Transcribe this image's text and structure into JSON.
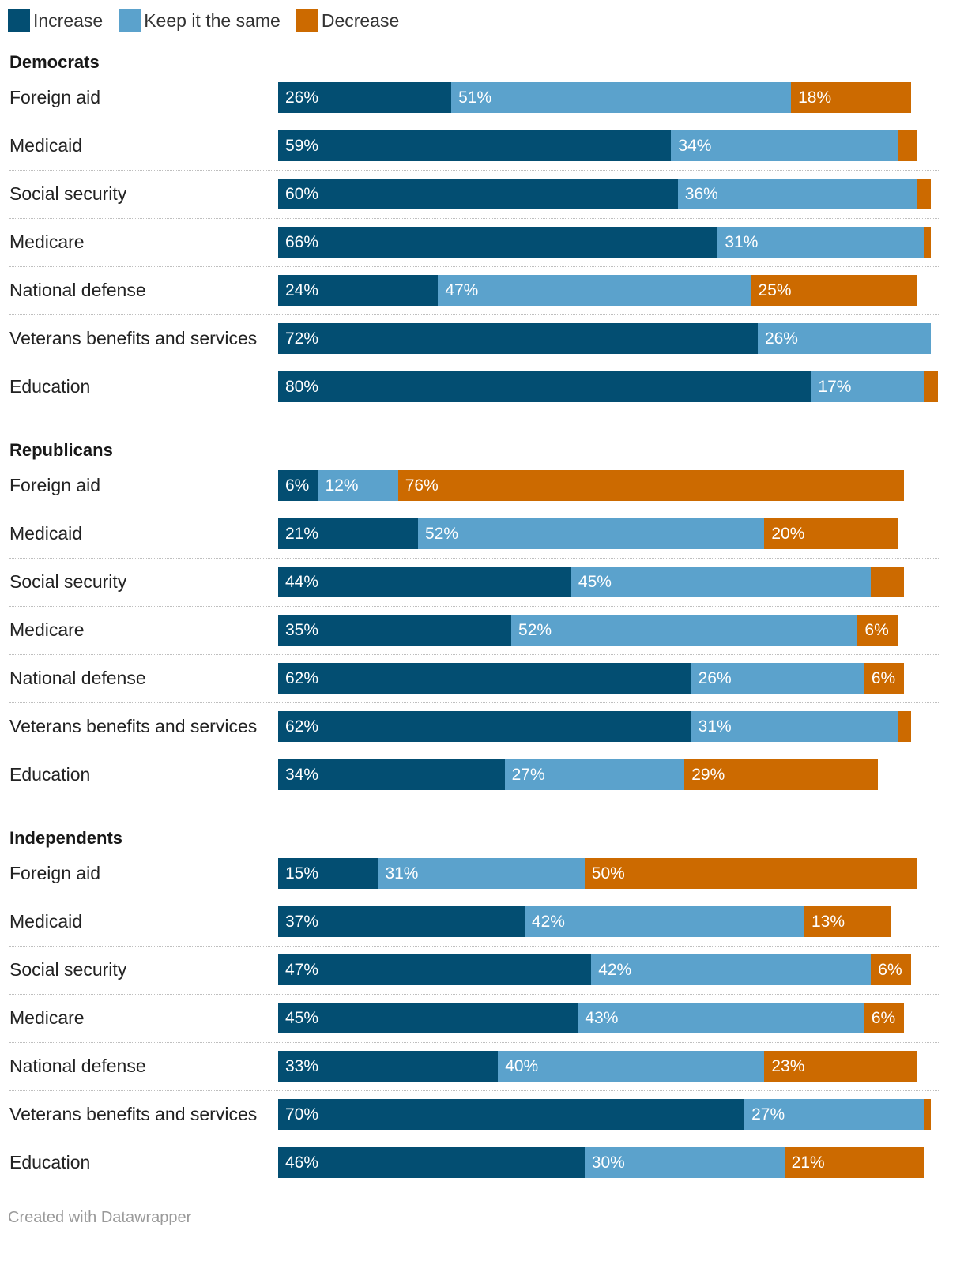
{
  "legend": [
    {
      "label": "Increase",
      "color": "#034e72"
    },
    {
      "label": "Keep it the same",
      "color": "#5ba2cc"
    },
    {
      "label": "Decrease",
      "color": "#cc6a00"
    }
  ],
  "chart_data": {
    "type": "bar",
    "orientation": "horizontal",
    "stacked": true,
    "unit": "%",
    "series_names": [
      "Increase",
      "Keep it the same",
      "Decrease"
    ],
    "xlim": [
      0,
      100
    ],
    "groups": [
      {
        "name": "Democrats",
        "rows": [
          {
            "label": "Foreign aid",
            "values": [
              26,
              51,
              18
            ],
            "labels": [
              "26%",
              "51%",
              "18%"
            ]
          },
          {
            "label": "Medicaid",
            "values": [
              59,
              34,
              3
            ],
            "labels": [
              "59%",
              "34%",
              ""
            ]
          },
          {
            "label": "Social security",
            "values": [
              60,
              36,
              2
            ],
            "labels": [
              "60%",
              "36%",
              ""
            ]
          },
          {
            "label": "Medicare",
            "values": [
              66,
              31,
              1
            ],
            "labels": [
              "66%",
              "31%",
              ""
            ]
          },
          {
            "label": "National defense",
            "values": [
              24,
              47,
              25
            ],
            "labels": [
              "24%",
              "47%",
              "25%"
            ]
          },
          {
            "label": "Veterans benefits and services",
            "values": [
              72,
              26,
              0
            ],
            "labels": [
              "72%",
              "26%",
              ""
            ]
          },
          {
            "label": "Education",
            "values": [
              80,
              17,
              2
            ],
            "labels": [
              "80%",
              "17%",
              ""
            ]
          }
        ]
      },
      {
        "name": "Republicans",
        "rows": [
          {
            "label": "Foreign aid",
            "values": [
              6,
              12,
              76
            ],
            "labels": [
              "6%",
              "12%",
              "76%"
            ]
          },
          {
            "label": "Medicaid",
            "values": [
              21,
              52,
              20
            ],
            "labels": [
              "21%",
              "52%",
              "20%"
            ]
          },
          {
            "label": "Social security",
            "values": [
              44,
              45,
              5
            ],
            "labels": [
              "44%",
              "45%",
              ""
            ]
          },
          {
            "label": "Medicare",
            "values": [
              35,
              52,
              6
            ],
            "labels": [
              "35%",
              "52%",
              "6%"
            ]
          },
          {
            "label": "National defense",
            "values": [
              62,
              26,
              6
            ],
            "labels": [
              "62%",
              "26%",
              "6%"
            ]
          },
          {
            "label": "Veterans benefits and services",
            "values": [
              62,
              31,
              2
            ],
            "labels": [
              "62%",
              "31%",
              ""
            ]
          },
          {
            "label": "Education",
            "values": [
              34,
              27,
              29
            ],
            "labels": [
              "34%",
              "27%",
              "29%"
            ]
          }
        ]
      },
      {
        "name": "Independents",
        "rows": [
          {
            "label": "Foreign aid",
            "values": [
              15,
              31,
              50
            ],
            "labels": [
              "15%",
              "31%",
              "50%"
            ]
          },
          {
            "label": "Medicaid",
            "values": [
              37,
              42,
              13
            ],
            "labels": [
              "37%",
              "42%",
              "13%"
            ]
          },
          {
            "label": "Social security",
            "values": [
              47,
              42,
              6
            ],
            "labels": [
              "47%",
              "42%",
              "6%"
            ]
          },
          {
            "label": "Medicare",
            "values": [
              45,
              43,
              6
            ],
            "labels": [
              "45%",
              "43%",
              "6%"
            ]
          },
          {
            "label": "National defense",
            "values": [
              33,
              40,
              23
            ],
            "labels": [
              "33%",
              "40%",
              "23%"
            ]
          },
          {
            "label": "Veterans benefits and services",
            "values": [
              70,
              27,
              1
            ],
            "labels": [
              "70%",
              "27%",
              ""
            ]
          },
          {
            "label": "Education",
            "values": [
              46,
              30,
              21
            ],
            "labels": [
              "46%",
              "30%",
              "21%"
            ]
          }
        ]
      }
    ]
  },
  "footer": "Created with Datawrapper"
}
